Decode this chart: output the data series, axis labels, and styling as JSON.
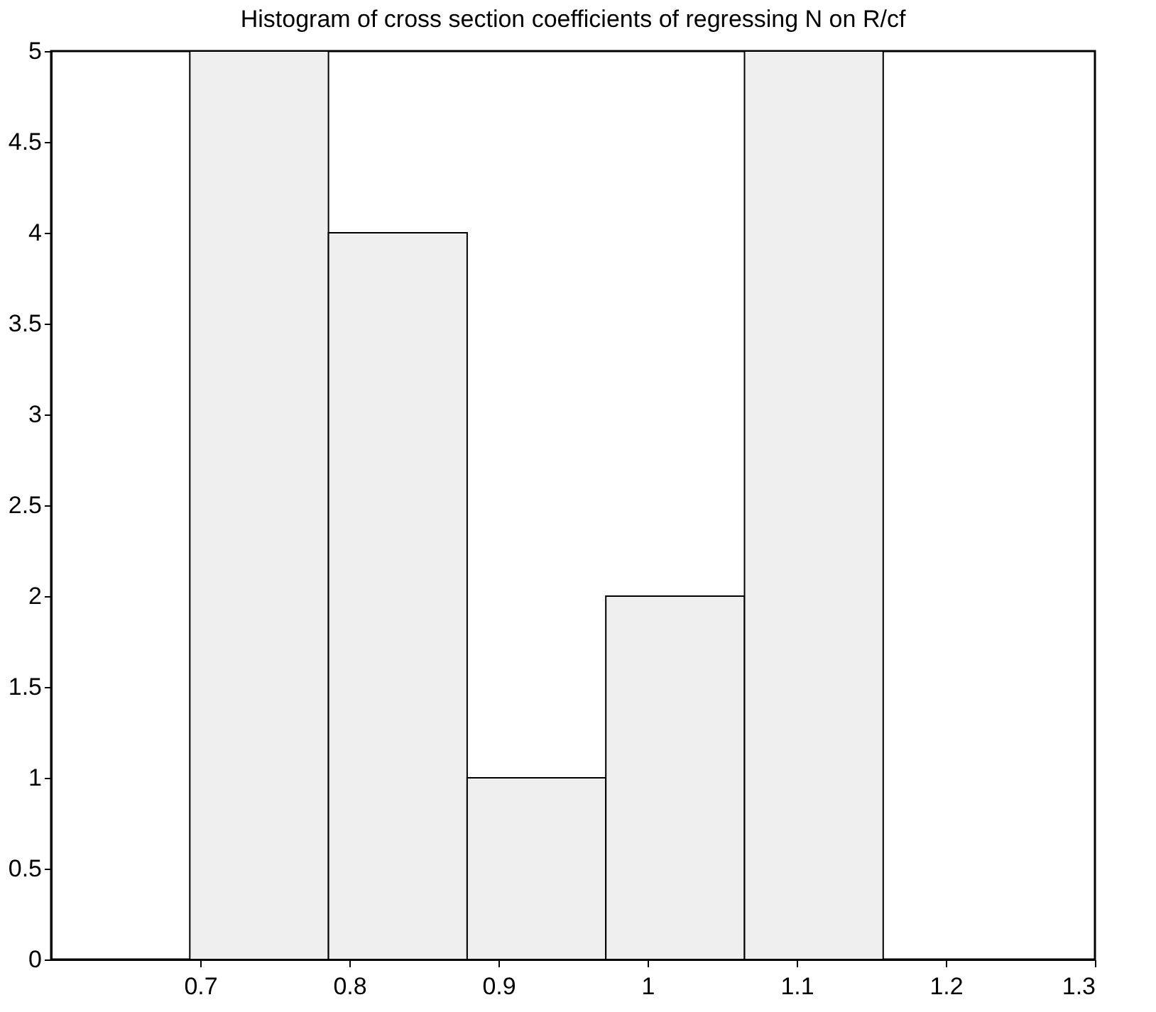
{
  "chart_data": {
    "type": "histogram",
    "title": "Histogram of cross section coefficients of regressing N on R/cf",
    "bins": [
      0.693,
      0.786,
      0.879,
      0.972,
      1.065,
      1.158
    ],
    "values": [
      5,
      4,
      1,
      2,
      5
    ],
    "color": "#efefef",
    "xlim": [
      0.6,
      1.3
    ],
    "xticks": [
      0.7,
      0.8,
      0.9,
      1,
      1.1,
      1.2,
      1.3
    ],
    "ylim": [
      0,
      5
    ],
    "yticks": [
      0,
      0.5,
      1,
      1.5,
      2,
      2.5,
      3,
      3.5,
      4,
      4.5,
      5
    ],
    "grid": false
  }
}
